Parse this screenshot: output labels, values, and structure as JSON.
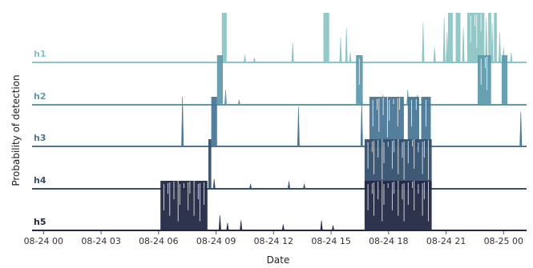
{
  "chart_data": {
    "type": "area",
    "style": "ridgeline",
    "xlabel": "Date",
    "ylabel": "Probability of detection",
    "x_ticks": [
      "08-24 00",
      "08-24 03",
      "08-24 06",
      "08-24 09",
      "08-24 12",
      "08-24 15",
      "08-24 18",
      "08-24 21",
      "08-25 00"
    ],
    "x_tick_hours": [
      0,
      3,
      6,
      9,
      12,
      15,
      18,
      21,
      24
    ],
    "x_range_hours": [
      -0.6,
      25.2
    ],
    "y_per_row": [
      0,
      1
    ],
    "grid": false,
    "legend": "none",
    "series": [
      {
        "name": "h1",
        "color": "#8cc5c5",
        "high_intervals": [
          [
            9.3,
            9.55
          ],
          [
            14.6,
            14.9
          ],
          [
            21.1,
            21.35
          ],
          [
            21.5,
            21.75
          ],
          [
            22.1,
            23.0
          ],
          [
            23.2,
            23.35
          ],
          [
            23.5,
            23.65
          ]
        ],
        "spikes": [
          [
            10.5,
            0.15
          ],
          [
            11.0,
            0.1
          ],
          [
            13.0,
            0.4
          ],
          [
            15.5,
            0.5
          ],
          [
            15.8,
            0.7
          ],
          [
            16.0,
            0.2
          ],
          [
            19.8,
            0.8
          ],
          [
            20.4,
            0.3
          ],
          [
            20.9,
            0.9
          ],
          [
            21.05,
            0.6
          ],
          [
            21.9,
            0.7
          ],
          [
            23.1,
            0.9
          ],
          [
            23.4,
            0.8
          ],
          [
            23.8,
            0.6
          ],
          [
            24.0,
            0.3
          ],
          [
            24.4,
            0.2
          ]
        ]
      },
      {
        "name": "h2",
        "color": "#5f9bac",
        "high_intervals": [
          [
            9.05,
            9.35
          ],
          [
            16.3,
            16.65
          ],
          [
            22.65,
            23.35
          ],
          [
            23.9,
            24.2
          ]
        ],
        "spikes": [
          [
            9.5,
            0.3
          ],
          [
            10.2,
            0.1
          ],
          [
            17.7,
            0.2
          ],
          [
            19.0,
            0.3
          ],
          [
            19.5,
            0.2
          ]
        ]
      },
      {
        "name": "h3",
        "color": "#4a7898",
        "high_intervals": [
          [
            8.75,
            9.05
          ],
          [
            17.0,
            18.8
          ],
          [
            19.0,
            19.6
          ],
          [
            19.7,
            20.2
          ]
        ],
        "spikes": [
          [
            7.25,
            1.0
          ],
          [
            13.3,
            0.8
          ],
          [
            16.6,
            0.9
          ],
          [
            24.9,
            0.7
          ]
        ]
      },
      {
        "name": "h4",
        "color": "#33506f",
        "high_intervals": [
          [
            8.6,
            8.75
          ],
          [
            16.75,
            20.25
          ]
        ],
        "spikes": [
          [
            10.8,
            0.1
          ],
          [
            12.8,
            0.15
          ],
          [
            13.6,
            0.1
          ],
          [
            8.9,
            0.2
          ]
        ]
      },
      {
        "name": "h5",
        "color": "#232845",
        "high_intervals": [
          [
            6.1,
            8.55
          ],
          [
            16.75,
            20.25
          ]
        ],
        "spikes": [
          [
            9.2,
            0.3
          ],
          [
            9.6,
            0.15
          ],
          [
            10.3,
            0.2
          ],
          [
            12.5,
            0.12
          ],
          [
            14.5,
            0.2
          ],
          [
            15.1,
            0.1
          ]
        ]
      }
    ]
  }
}
